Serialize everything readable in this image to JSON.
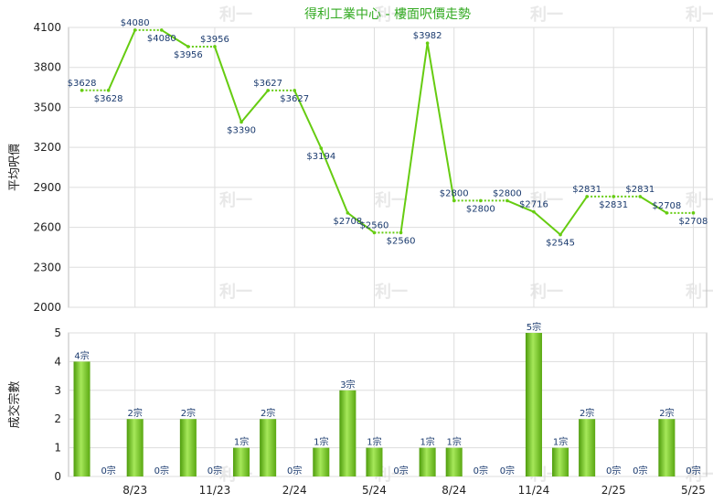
{
  "chart_data": [
    {
      "type": "line",
      "title": "得利工業中心 - 樓面呎價走勢",
      "ylabel": "平均呎價",
      "ylim": [
        2000,
        4100
      ],
      "yticks": [
        "2000",
        "2300",
        "2600",
        "2900",
        "3200",
        "3500",
        "3800",
        "4100"
      ],
      "ytick_values": [
        2000,
        2300,
        2600,
        2900,
        3200,
        3500,
        3800,
        4100
      ],
      "grid": true,
      "series_color": "#66cc11",
      "points": [
        {
          "v": 3628,
          "label": "$3628",
          "pos": "above"
        },
        {
          "v": 3628,
          "label": "$3628",
          "pos": "below"
        },
        {
          "v": 4080,
          "label": "$4080",
          "pos": "above"
        },
        {
          "v": 4080,
          "label": "$4080",
          "pos": "below"
        },
        {
          "v": 3956,
          "label": "$3956",
          "pos": "below"
        },
        {
          "v": 3956,
          "label": "$3956",
          "pos": "above"
        },
        {
          "v": 3390,
          "label": "$3390",
          "pos": "below"
        },
        {
          "v": 3627,
          "label": "$3627",
          "pos": "above"
        },
        {
          "v": 3627,
          "label": "$3627",
          "pos": "below"
        },
        {
          "v": 3194,
          "label": "$3194",
          "pos": "below"
        },
        {
          "v": 2708,
          "label": "$2708",
          "pos": "below"
        },
        {
          "v": 2560,
          "label": "$2560",
          "pos": "above"
        },
        {
          "v": 2560,
          "label": "$2560",
          "pos": "below"
        },
        {
          "v": 3982,
          "label": "$3982",
          "pos": "above"
        },
        {
          "v": 2800,
          "label": "$2800",
          "pos": "above"
        },
        {
          "v": 2800,
          "label": "$2800",
          "pos": "below"
        },
        {
          "v": 2800,
          "label": "$2800",
          "pos": "above"
        },
        {
          "v": 2716,
          "label": "$2716",
          "pos": "above"
        },
        {
          "v": 2545,
          "label": "$2545",
          "pos": "below"
        },
        {
          "v": 2831,
          "label": "$2831",
          "pos": "above"
        },
        {
          "v": 2831,
          "label": "$2831",
          "pos": "below"
        },
        {
          "v": 2831,
          "label": "$2831",
          "pos": "above"
        },
        {
          "v": 2708,
          "label": "$2708",
          "pos": "above"
        },
        {
          "v": 2708,
          "label": "$2708",
          "pos": "below"
        }
      ]
    },
    {
      "type": "bar",
      "ylabel": "成交宗數",
      "ylim": [
        0,
        5
      ],
      "yticks": [
        "0",
        "1",
        "2",
        "3",
        "4",
        "5"
      ],
      "bar_color": "#77cc22",
      "values": [
        4,
        0,
        2,
        0,
        2,
        0,
        1,
        2,
        0,
        1,
        3,
        1,
        0,
        1,
        1,
        0,
        0,
        5,
        1,
        2,
        0,
        0,
        2,
        0
      ],
      "labels": [
        "4宗",
        "0宗",
        "2宗",
        "0宗",
        "2宗",
        "0宗",
        "1宗",
        "2宗",
        "0宗",
        "1宗",
        "3宗",
        "1宗",
        "0宗",
        "1宗",
        "1宗",
        "0宗",
        "0宗",
        "5宗",
        "1宗",
        "2宗",
        "0宗",
        "0宗",
        "2宗",
        "0宗"
      ],
      "x_ticks": [
        {
          "index": 2,
          "label": "8/23"
        },
        {
          "index": 5,
          "label": "11/23"
        },
        {
          "index": 8,
          "label": "2/24"
        },
        {
          "index": 11,
          "label": "5/24"
        },
        {
          "index": 14,
          "label": "8/24"
        },
        {
          "index": 17,
          "label": "11/24"
        },
        {
          "index": 20,
          "label": "2/25"
        },
        {
          "index": 23,
          "label": "5/25"
        }
      ]
    }
  ],
  "watermark": "利一"
}
